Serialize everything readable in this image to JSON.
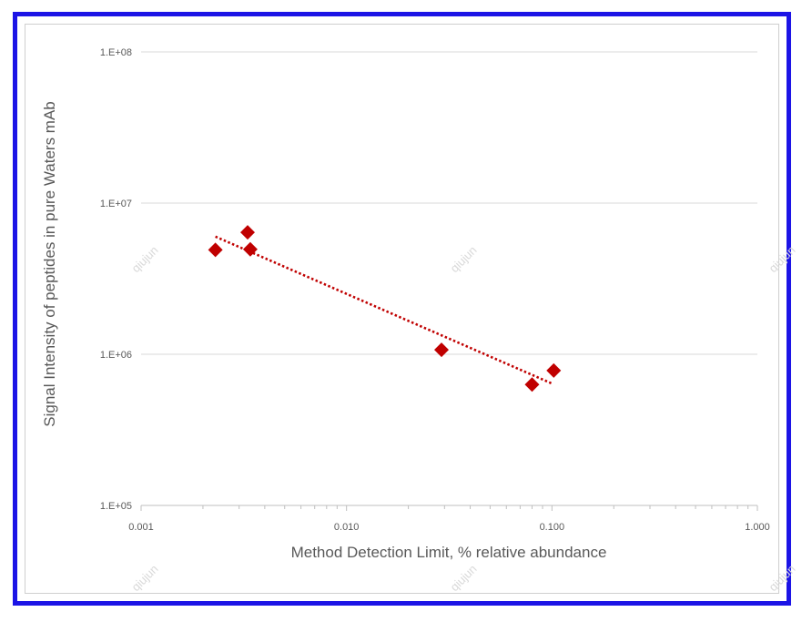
{
  "chart_data": {
    "type": "scatter",
    "xlabel": "Method Detection Limit, % relative abundance",
    "ylabel": "Signal Intensity of peptides in pure Waters mAb",
    "x_scale": "log",
    "y_scale": "log",
    "xlim": [
      0.001,
      1.0
    ],
    "ylim": [
      100000,
      100000000
    ],
    "x_ticks": [
      0.001,
      0.01,
      0.1,
      1.0
    ],
    "x_tick_labels": [
      "0.001",
      "0.010",
      "0.100",
      "1.000"
    ],
    "y_ticks": [
      100000,
      1000000,
      10000000,
      100000000
    ],
    "y_tick_labels": [
      "1.E+05",
      "1.E+06",
      "1.E+07",
      "1.E+08"
    ],
    "grid": "horizontal major",
    "series": [
      {
        "marker": "diamond",
        "color": "#c00000",
        "points": [
          {
            "x": 0.0023,
            "y": 4900000
          },
          {
            "x": 0.0033,
            "y": 6400000
          },
          {
            "x": 0.0034,
            "y": 4950000
          },
          {
            "x": 0.029,
            "y": 1070000
          },
          {
            "x": 0.08,
            "y": 630000
          },
          {
            "x": 0.102,
            "y": 780000
          }
        ]
      }
    ],
    "trendline": {
      "type": "power",
      "style": "dotted",
      "color": "#c00000",
      "from": {
        "x": 0.0023,
        "y": 6000000
      },
      "to": {
        "x": 0.1,
        "y": 640000
      }
    }
  },
  "watermark": "qiujun",
  "colors": {
    "frame_border": "#1c14e6",
    "marker": "#c00000",
    "gridline": "#d9d9d9",
    "text": "#595959"
  }
}
